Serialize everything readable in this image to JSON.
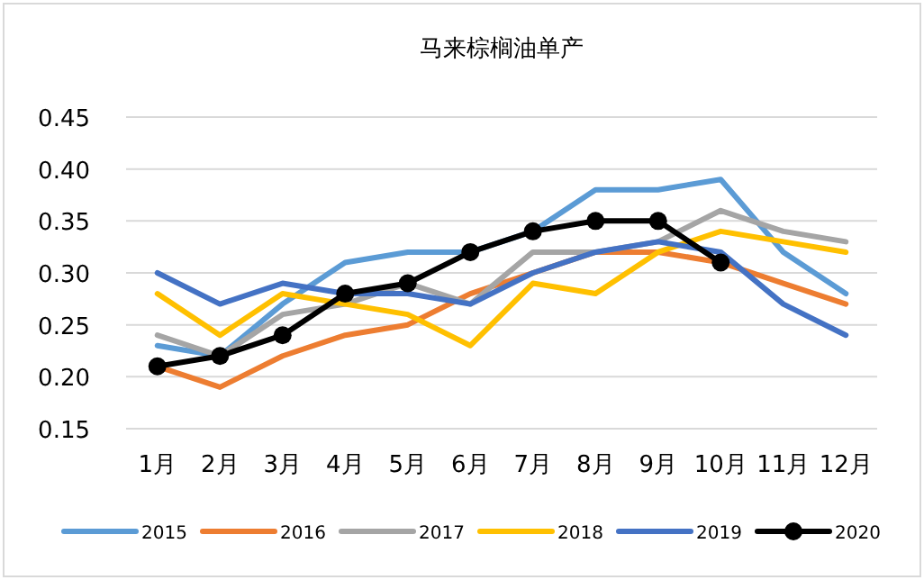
{
  "chart_data": {
    "type": "line",
    "title": "马来棕榈油单产",
    "categories": [
      "1月",
      "2月",
      "3月",
      "4月",
      "5月",
      "6月",
      "7月",
      "8月",
      "9月",
      "10月",
      "11月",
      "12月"
    ],
    "ylim": [
      0.15,
      0.45
    ],
    "yticks": [
      {
        "value": 0.15,
        "label": "0.15"
      },
      {
        "value": 0.2,
        "label": "0.20"
      },
      {
        "value": 0.25,
        "label": "0.25"
      },
      {
        "value": 0.3,
        "label": "0.30"
      },
      {
        "value": 0.35,
        "label": "0.35"
      },
      {
        "value": 0.4,
        "label": "0.40"
      },
      {
        "value": 0.45,
        "label": "0.45"
      }
    ],
    "grid": "y",
    "legend": "bottom",
    "series": [
      {
        "name": "2015",
        "color": "#5b9bd5",
        "marker": "none",
        "values": [
          0.23,
          0.22,
          0.27,
          0.31,
          0.32,
          0.32,
          0.34,
          0.38,
          0.38,
          0.39,
          0.32,
          0.28
        ]
      },
      {
        "name": "2016",
        "color": "#ed7d31",
        "marker": "none",
        "values": [
          0.21,
          0.19,
          0.22,
          0.24,
          0.25,
          0.28,
          0.3,
          0.32,
          0.32,
          0.31,
          0.29,
          0.27
        ]
      },
      {
        "name": "2017",
        "color": "#a5a5a5",
        "marker": "none",
        "values": [
          0.24,
          0.22,
          0.26,
          0.27,
          0.29,
          0.27,
          0.32,
          0.32,
          0.33,
          0.36,
          0.34,
          0.33
        ]
      },
      {
        "name": "2018",
        "color": "#ffc000",
        "marker": "none",
        "values": [
          0.28,
          0.24,
          0.28,
          0.27,
          0.26,
          0.23,
          0.29,
          0.28,
          0.32,
          0.34,
          0.33,
          0.32
        ]
      },
      {
        "name": "2019",
        "color": "#4472c4",
        "marker": "none",
        "values": [
          0.3,
          0.27,
          0.29,
          0.28,
          0.28,
          0.27,
          0.3,
          0.32,
          0.33,
          0.32,
          0.27,
          0.24
        ]
      },
      {
        "name": "2020",
        "color": "#000000",
        "marker": "circle",
        "values": [
          0.21,
          0.22,
          0.24,
          0.28,
          0.29,
          0.32,
          0.34,
          0.35,
          0.35,
          0.31,
          null,
          null
        ]
      }
    ]
  }
}
